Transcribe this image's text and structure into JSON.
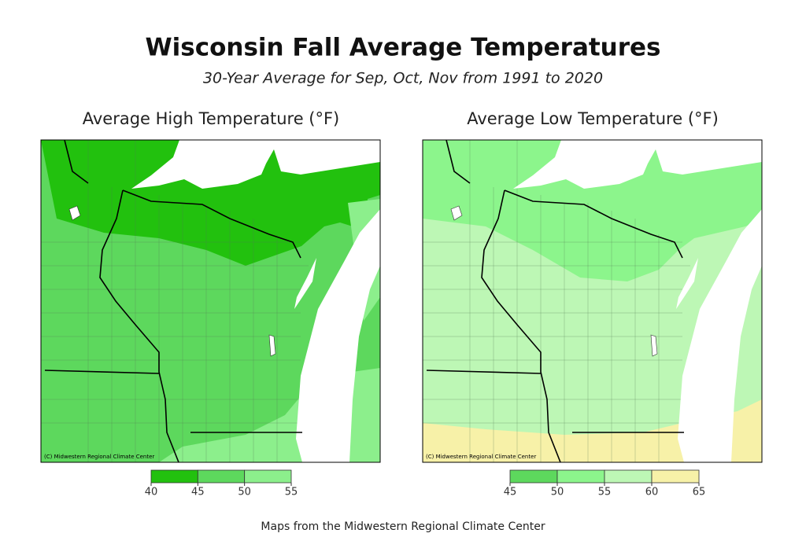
{
  "header": {
    "title": "Wisconsin Fall Average Temperatures",
    "subtitle": "30-Year Average for Sep, Oct, Nov from 1991 to 2020"
  },
  "maps": [
    {
      "title": "Average High Temperature (°F)",
      "credit": "(C) Midwestern Regional Climate Center",
      "legend": {
        "ticks": [
          40,
          45,
          50,
          55
        ],
        "colors": [
          "#22c10e",
          "#5dd85d",
          "#8cef8c"
        ]
      }
    },
    {
      "title": "Average Low Temperature (°F)",
      "credit": "(C) Midwestern Regional Climate Center",
      "legend": {
        "ticks": [
          45,
          50,
          55,
          60,
          65
        ],
        "colors": [
          "#5dd85d",
          "#8cf58c",
          "#bdf7b5",
          "#f7f1a8"
        ]
      }
    }
  ],
  "footer": "Maps from the Midwestern Regional Climate Center"
}
